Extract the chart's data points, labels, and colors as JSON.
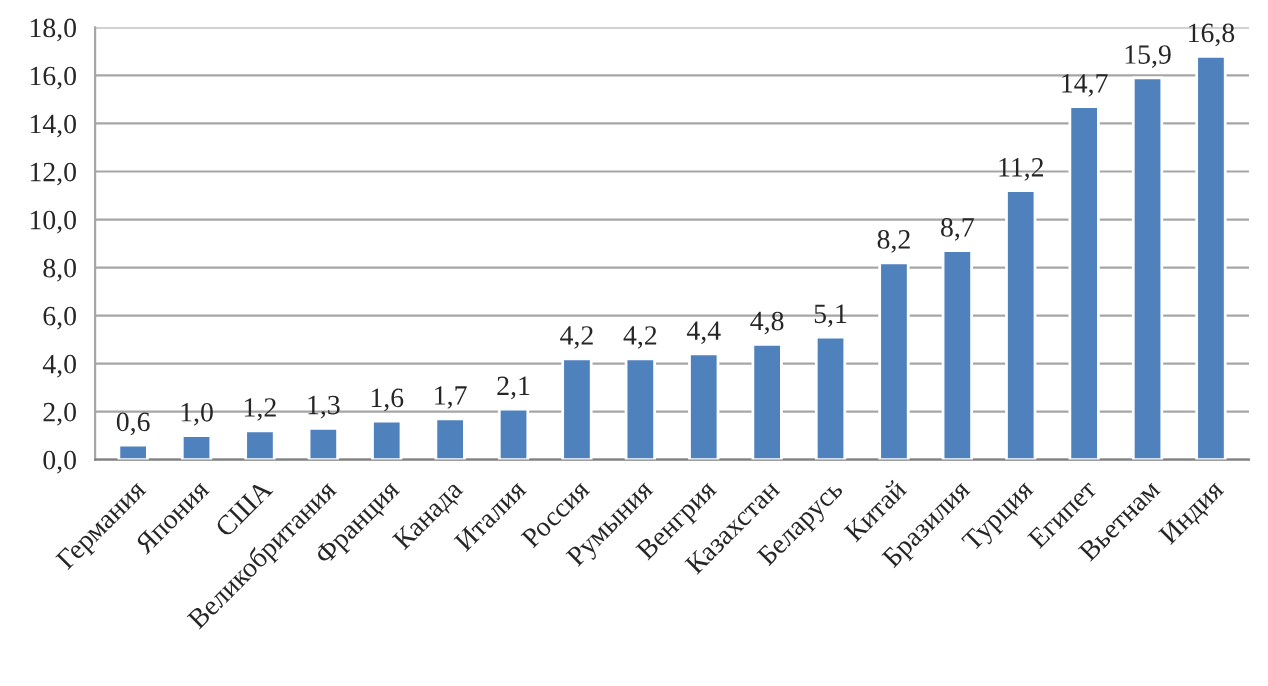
{
  "chart_data": {
    "type": "bar",
    "categories": [
      "Германия",
      "Япония",
      "США",
      "Великобритания",
      "Франция",
      "Канада",
      "Италия",
      "Россия",
      "Румыния",
      "Венгрия",
      "Казахстан",
      "Беларусь",
      "Китай",
      "Бразилия",
      "Турция",
      "Египет",
      "Вьетнам",
      "Индия"
    ],
    "values": [
      0.6,
      1.0,
      1.2,
      1.3,
      1.6,
      1.7,
      2.1,
      4.2,
      4.2,
      4.4,
      4.8,
      5.1,
      8.2,
      8.7,
      11.2,
      14.7,
      15.9,
      16.8
    ],
    "value_labels": [
      "0,6",
      "1,0",
      "1,2",
      "1,3",
      "1,6",
      "1,7",
      "2,1",
      "4,2",
      "4,2",
      "4,4",
      "4,8",
      "5,1",
      "8,2",
      "8,7",
      "11,2",
      "14,7",
      "15,9",
      "16,8"
    ],
    "color": "#4f81bd",
    "ylim": [
      0,
      18
    ],
    "yticks": [
      {
        "value": 0,
        "label": "0,0"
      },
      {
        "value": 2,
        "label": "2,0"
      },
      {
        "value": 4,
        "label": "4,0"
      },
      {
        "value": 6,
        "label": "6,0"
      },
      {
        "value": 8,
        "label": "8,0"
      },
      {
        "value": 10,
        "label": "10,0"
      },
      {
        "value": 12,
        "label": "12,0"
      },
      {
        "value": 14,
        "label": "14,0"
      },
      {
        "value": 16,
        "label": "16,0"
      },
      {
        "value": 18,
        "label": "18,0"
      }
    ],
    "grid": "y",
    "legend": false
  }
}
